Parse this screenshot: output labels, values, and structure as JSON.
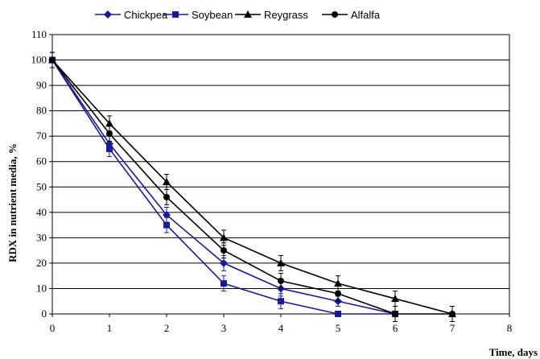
{
  "chart_data": {
    "type": "line",
    "xlabel": "Time, days",
    "ylabel": "RDX in nutrient media, %",
    "xlim": [
      0,
      8
    ],
    "ylim": [
      0,
      110
    ],
    "x_ticks": [
      "0",
      "1",
      "2",
      "3",
      "4",
      "5",
      "6",
      "7",
      "8"
    ],
    "y_ticks": [
      "0",
      "10",
      "20",
      "30",
      "40",
      "50",
      "60",
      "70",
      "80",
      "90",
      "100",
      "110"
    ],
    "grid": "horizontal",
    "legend_position": "top",
    "series": [
      {
        "name": "Chickpea",
        "color": "#1a1a99",
        "marker": "diamond",
        "x": [
          0,
          1,
          2,
          3,
          4,
          5,
          6
        ],
        "y": [
          100,
          67,
          39,
          20,
          10,
          5,
          0
        ],
        "error": [
          3,
          3,
          3,
          3,
          3,
          2,
          0
        ]
      },
      {
        "name": "Soybean",
        "color": "#1a1a99",
        "marker": "square",
        "x": [
          0,
          1,
          2,
          3,
          4,
          5,
          6
        ],
        "y": [
          100,
          65,
          35,
          12,
          5,
          0,
          0
        ],
        "error": [
          3,
          3,
          3,
          3,
          3,
          0,
          0
        ]
      },
      {
        "name": "Reygrass",
        "color": "#000000",
        "marker": "triangle",
        "x": [
          0,
          1,
          2,
          3,
          4,
          5,
          6,
          7
        ],
        "y": [
          100,
          75,
          52,
          30,
          20,
          12,
          6,
          0
        ],
        "error": [
          3,
          3,
          3,
          3,
          3,
          3,
          3,
          3
        ]
      },
      {
        "name": "Alfalfa",
        "color": "#000000",
        "marker": "circle",
        "x": [
          0,
          1,
          2,
          3,
          4,
          5,
          6,
          7
        ],
        "y": [
          100,
          71,
          46,
          25,
          13,
          8,
          0,
          0
        ],
        "error": [
          3,
          3,
          3,
          3,
          3,
          3,
          3,
          0
        ]
      }
    ]
  }
}
